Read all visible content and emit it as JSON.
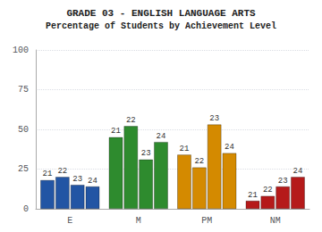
{
  "chart_data": {
    "type": "bar",
    "title": "GRADE 03 - ENGLISH LANGUAGE ARTS",
    "subtitle": "Percentage of Students by Achievement Level",
    "categories": [
      "E",
      "M",
      "PM",
      "NM"
    ],
    "series": [
      {
        "name": "21",
        "values": [
          18,
          45,
          34,
          5
        ]
      },
      {
        "name": "22",
        "values": [
          20,
          52,
          26,
          8
        ]
      },
      {
        "name": "23",
        "values": [
          15,
          31,
          53,
          14
        ]
      },
      {
        "name": "24",
        "values": [
          14,
          42,
          35,
          20
        ]
      }
    ],
    "colors": [
      "#2255a4",
      "#2e8b2e",
      "#d48a00",
      "#b51a1a"
    ],
    "ylim": [
      0,
      100
    ],
    "yticks": [
      0,
      25,
      50,
      75,
      100
    ],
    "grid": true
  }
}
